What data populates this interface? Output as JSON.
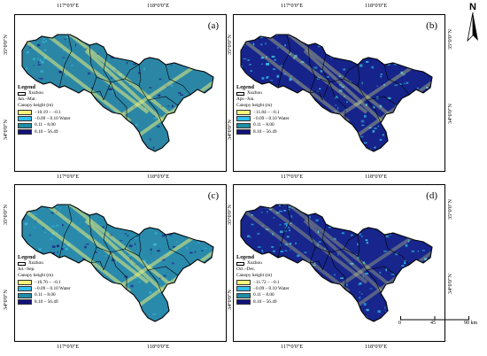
{
  "ticks": {
    "lon_117": "117°0'0\"E",
    "lon_118": "118°0'0\"E",
    "lat_35": "35°0'0\"N",
    "lat_34": "34°0'0\"N"
  },
  "legend": {
    "title": "Legend",
    "boundary_label": "Xuzhou",
    "subtitle": "Canopy height (m)",
    "colors": [
      "#f7f57a",
      "#2fc0f0",
      "#1f8fa8",
      "#12127e"
    ],
    "boundary_color": "#000000"
  },
  "panels": [
    {
      "label": "(a)",
      "period": "Jan.–Mar.",
      "classes": [
        "−10.19 – −0.1",
        "−0.09 – 0.10 Water",
        "0.11 – 8.00",
        "8.10 – 56.49"
      ]
    },
    {
      "label": "(b)",
      "period": "Apr.–Jun.",
      "classes": [
        "−11.84 – −0.1",
        "−0.09 – 0.10 Water",
        "0.11 – 8.00",
        "8.10 – 56.49"
      ]
    },
    {
      "label": "(c)",
      "period": "Jul.–Sep.",
      "classes": [
        "−10.76 – −0.1",
        "−0.09 – 0.10 Water",
        "0.11 – 8.00",
        "8.10 – 56.49"
      ]
    },
    {
      "label": "(d)",
      "period": "Oct.–Dec.",
      "classes": [
        "−11.72 – −0.1",
        "−0.09 – 0.10 Water",
        "0.11 – 8.00",
        "8.10 – 56.49"
      ]
    }
  ],
  "north": {
    "label": "N"
  },
  "scale": {
    "ticks": [
      "0",
      "45",
      "90 km"
    ]
  }
}
